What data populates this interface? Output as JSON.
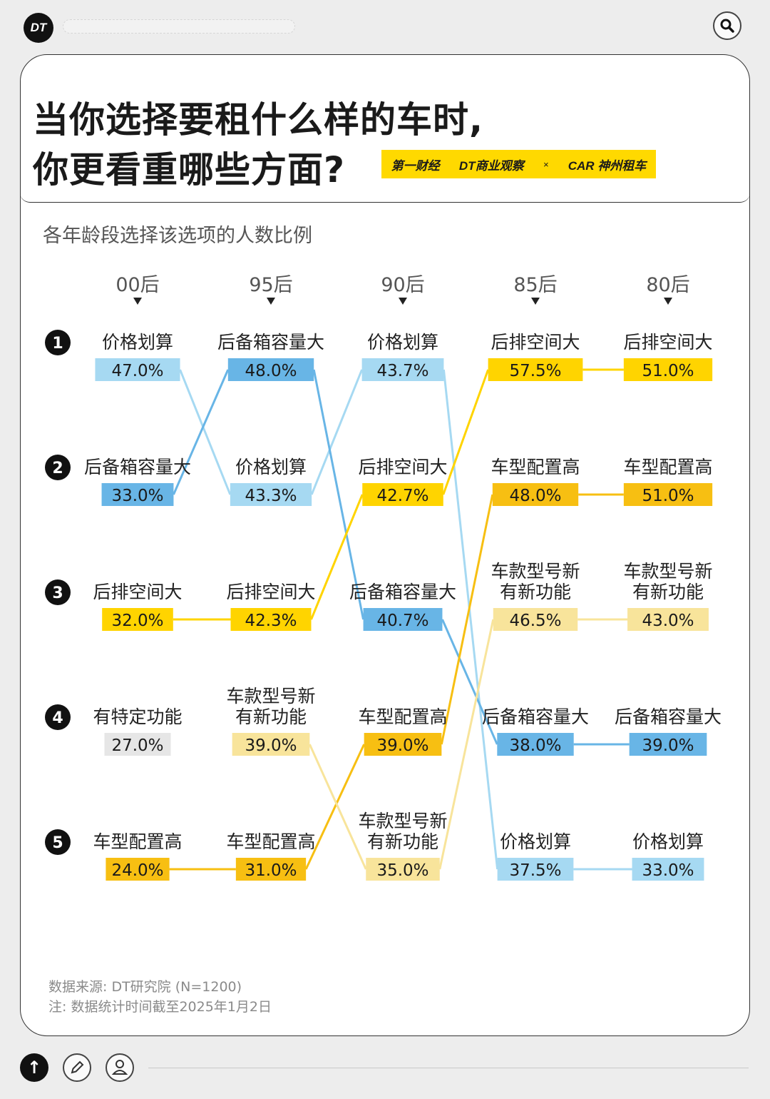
{
  "header": {
    "logo_text": "DT",
    "search_icon": "search-icon"
  },
  "title": {
    "line1": "当你选择要租什么样的车时,",
    "line2": "你更看重哪些方面?"
  },
  "brands": {
    "brand1": "第一财经",
    "brand2": "DT商业观察",
    "separator": "×",
    "brand3": "CAR 神州租车"
  },
  "subtitle": "各年龄段选择该选项的人数比例",
  "chart_data": {
    "type": "bump",
    "groups": [
      "00后",
      "95后",
      "90后",
      "85后",
      "80后"
    ],
    "ranks": [
      "1",
      "2",
      "3",
      "4",
      "5"
    ],
    "series": [
      {
        "name": "价格划算",
        "color": "#a6d9f2",
        "ranks": [
          1,
          2,
          1,
          5,
          5
        ],
        "values": [
          47.0,
          43.3,
          43.7,
          37.5,
          33.0
        ]
      },
      {
        "name": "后备箱容量大",
        "color": "#68b5e6",
        "ranks": [
          2,
          1,
          3,
          4,
          4
        ],
        "values": [
          33.0,
          48.0,
          40.7,
          38.0,
          39.0
        ]
      },
      {
        "name": "后排空间大",
        "color": "#ffd400",
        "ranks": [
          3,
          3,
          2,
          1,
          1
        ],
        "values": [
          32.0,
          42.3,
          42.7,
          57.5,
          51.0
        ]
      },
      {
        "name": "车型配置高",
        "color": "#f7bf12",
        "ranks": [
          5,
          5,
          4,
          2,
          2
        ],
        "values": [
          24.0,
          31.0,
          39.0,
          48.0,
          51.0
        ]
      },
      {
        "name": "车款型号新有新功能",
        "color": "#f8e49b",
        "ranks": [
          null,
          4,
          5,
          3,
          3
        ],
        "values": [
          null,
          39.0,
          35.0,
          46.5,
          43.0
        ]
      },
      {
        "name": "有特定功能",
        "color": "#e6e6e6",
        "ranks": [
          4,
          null,
          null,
          null,
          null
        ],
        "values": [
          27.0,
          null,
          null,
          null,
          null
        ]
      }
    ],
    "labels": {
      "价格划算": [
        "价格划算"
      ],
      "后备箱容量大": [
        "后备箱容量大"
      ],
      "后排空间大": [
        "后排空间大"
      ],
      "车型配置高": [
        "车型配置高"
      ],
      "车款型号新有新功能": [
        "车款型号新",
        "有新功能"
      ],
      "有特定功能": [
        "有特定功能"
      ]
    }
  },
  "footer": {
    "source": "数据来源: DT研究院 (N=1200)",
    "note": "注: 数据统计时间截至2025年1月2日"
  },
  "bottom_bar": {
    "up_icon": "arrow-up-icon",
    "edit_icon": "pencil-icon",
    "user_icon": "user-icon",
    "up_glyph": "↑"
  }
}
